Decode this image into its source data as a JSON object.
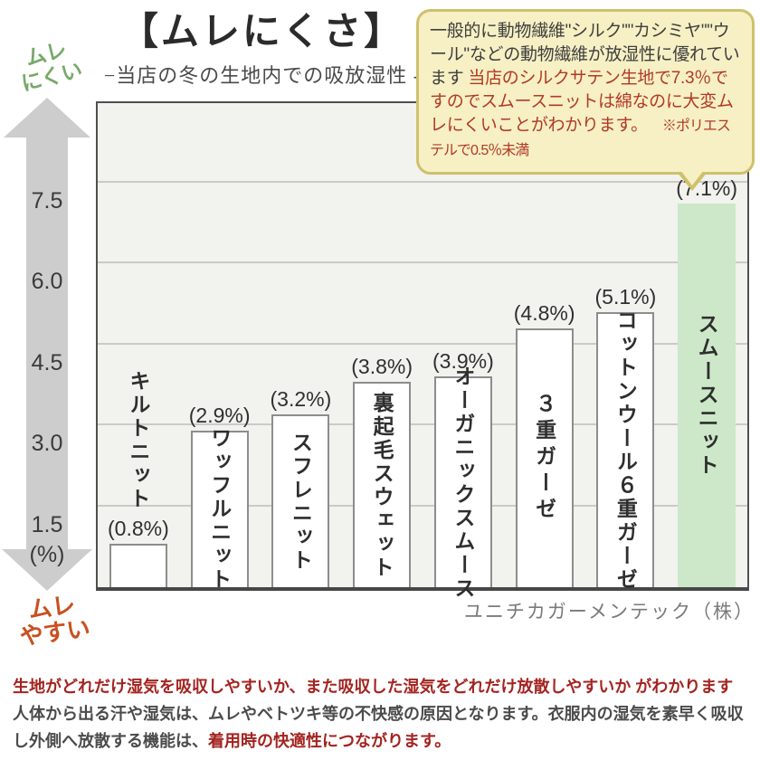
{
  "title": "【ムレにくさ】",
  "subtitle": "−当店の冬の生地内での吸放湿性 -",
  "bubble": {
    "text_dark": "一般的に動物繊維\"シルク\"\"カシミヤ\"\"ウール\"などの動物繊維が放湿性に優れています ",
    "text_red": "当店のシルクサテン生地で7.3％ですのでスムースニットは綿なのに大変ムレにくいことがわかります。",
    "note": "※ポリエステルで0.5％未満"
  },
  "axis_captions": {
    "top_line1": "ムレ",
    "top_line2": "にくい",
    "bottom_line1": "ムレ",
    "bottom_line2": "やすい"
  },
  "chart_data": {
    "type": "bar",
    "title": "ムレにくさ（当店の冬の生地内での吸放湿性）",
    "ylabel": "",
    "unit_label": "(%)",
    "ylim": [
      0,
      9
    ],
    "grid": true,
    "y_ticks": [
      {
        "label": "7.5",
        "value": 7.5
      },
      {
        "label": "6.0",
        "value": 6.0
      },
      {
        "label": "4.5",
        "value": 4.5
      },
      {
        "label": "3.0",
        "value": 3.0
      },
      {
        "label": "1.5",
        "value": 1.5
      }
    ],
    "categories": [
      "キルトニット",
      "ワッフルニット",
      "スフレニット",
      "裏起毛スウェット",
      "オーガニックスムース",
      "３重ガーゼ",
      "コットンウール６重ガーゼ",
      "スムースニット"
    ],
    "values": [
      0.8,
      2.9,
      3.2,
      3.8,
      3.9,
      4.8,
      5.1,
      7.1
    ],
    "bars": [
      {
        "label": "キルトニット",
        "value": 0.8,
        "percent_label": "(0.8%)",
        "highlighted": false,
        "label_inside": false
      },
      {
        "label": "ワッフルニット",
        "value": 2.9,
        "percent_label": "(2.9%)",
        "highlighted": false,
        "label_inside": true
      },
      {
        "label": "スフレニット",
        "value": 3.2,
        "percent_label": "(3.2%)",
        "highlighted": false,
        "label_inside": true
      },
      {
        "label": "裏起毛スウェット",
        "value": 3.8,
        "percent_label": "(3.8%)",
        "highlighted": false,
        "label_inside": true
      },
      {
        "label": "オーガニックスムース",
        "value": 3.9,
        "percent_label": "(3.9%)",
        "highlighted": false,
        "label_inside": true
      },
      {
        "label": "３重ガーゼ",
        "value": 4.8,
        "percent_label": "(4.8%)",
        "highlighted": false,
        "label_inside": true
      },
      {
        "label": "コットンウール６重ガーゼ",
        "value": 5.1,
        "percent_label": "(5.1%)",
        "highlighted": false,
        "label_inside": true
      },
      {
        "label": "スムースニット",
        "value": 7.1,
        "percent_label": "(7.1%)",
        "highlighted": true,
        "label_inside": true
      }
    ],
    "source": "ユニチカガーメンテック（株）",
    "legend": null
  },
  "colors": {
    "bar_fill": "#ffffff",
    "bar_border": "#8d8d8d",
    "highlight_bar": "#cce8c9",
    "plot_background": "#f2f2ee",
    "accent_red": "#a32420",
    "bubble_red": "#b13a26",
    "bubble_background": "#f6f0c4",
    "bubble_border": "#cfc06b",
    "green_caption": "#77a968",
    "orange_caption": "#c9501f",
    "arrow_gray": "#cdcdcd"
  },
  "footer": {
    "line1": "生地がどれだけ湿気を吸収しやすいか、また吸収した湿気をどれだけ放散しやすいか がわかります",
    "line2": "人体から出る汗や湿気は、ムレやベトツキ等の不快感の原因となります。衣服内の湿気を素早く吸収",
    "line3_dark": "し外側へ放散する機能は、",
    "line3_red": "着用時の快適性につながります。"
  }
}
